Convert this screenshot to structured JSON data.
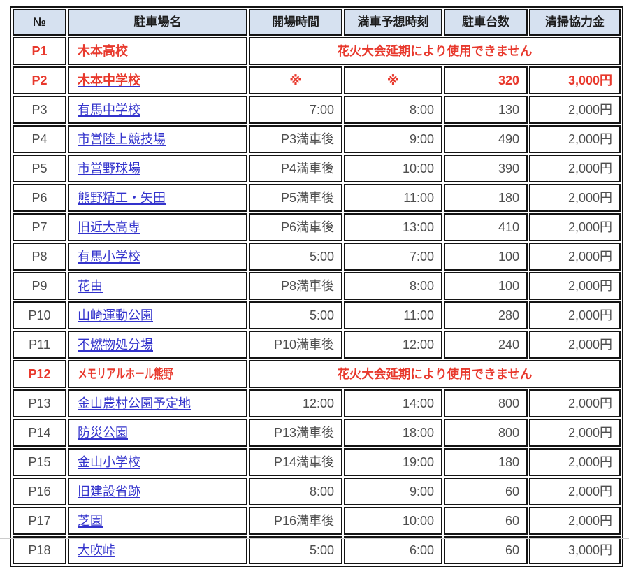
{
  "table": {
    "headers": [
      "№",
      "駐車場名",
      "開場時間",
      "満車予想時刻",
      "駐車台数",
      "清掃協力金"
    ],
    "unavailable_message": "花火大会延期により使用できません",
    "rows": [
      {
        "no": "P1",
        "name": "木本高校",
        "link": false,
        "red": true,
        "condensed": false,
        "closed": true
      },
      {
        "no": "P2",
        "name": "木本中学校",
        "link": true,
        "red": true,
        "condensed": false,
        "closed": false,
        "open": "※",
        "full": "※",
        "capacity": "320",
        "fee": "3,000円"
      },
      {
        "no": "P3",
        "name": "有馬中学校",
        "link": true,
        "red": false,
        "condensed": false,
        "closed": false,
        "open": "7:00",
        "full": "8:00",
        "capacity": "130",
        "fee": "2,000円"
      },
      {
        "no": "P4",
        "name": "市営陸上競技場",
        "link": true,
        "red": false,
        "condensed": false,
        "closed": false,
        "open": "P3満車後",
        "full": "9:00",
        "capacity": "490",
        "fee": "2,000円"
      },
      {
        "no": "P5",
        "name": "市営野球場",
        "link": true,
        "red": false,
        "condensed": false,
        "closed": false,
        "open": "P4満車後",
        "full": "10:00",
        "capacity": "390",
        "fee": "2,000円"
      },
      {
        "no": "P6",
        "name": "熊野精工・矢田",
        "link": true,
        "red": false,
        "condensed": false,
        "closed": false,
        "open": "P5満車後",
        "full": "11:00",
        "capacity": "180",
        "fee": "2,000円"
      },
      {
        "no": "P7",
        "name": "旧近大高専",
        "link": true,
        "red": false,
        "condensed": false,
        "closed": false,
        "open": "P6満車後",
        "full": "13:00",
        "capacity": "410",
        "fee": "2,000円"
      },
      {
        "no": "P8",
        "name": "有馬小学校",
        "link": true,
        "red": false,
        "condensed": false,
        "closed": false,
        "open": "5:00",
        "full": "7:00",
        "capacity": "100",
        "fee": "2,000円"
      },
      {
        "no": "P9",
        "name": "花由",
        "link": true,
        "red": false,
        "condensed": false,
        "closed": false,
        "open": "P8満車後",
        "full": "8:00",
        "capacity": "100",
        "fee": "2,000円"
      },
      {
        "no": "P10",
        "name": "山崎運動公園",
        "link": true,
        "red": false,
        "condensed": false,
        "closed": false,
        "open": "5:00",
        "full": "11:00",
        "capacity": "280",
        "fee": "2,000円"
      },
      {
        "no": "P11",
        "name": "不燃物処分場",
        "link": true,
        "red": false,
        "condensed": false,
        "closed": false,
        "open": "P10満車後",
        "full": "12:00",
        "capacity": "240",
        "fee": "2,000円"
      },
      {
        "no": "P12",
        "name": "メモリアルホール熊野",
        "link": false,
        "red": true,
        "condensed": true,
        "closed": true
      },
      {
        "no": "P13",
        "name": "金山農村公園予定地",
        "link": true,
        "red": false,
        "condensed": false,
        "closed": false,
        "open": "12:00",
        "full": "14:00",
        "capacity": "800",
        "fee": "2,000円"
      },
      {
        "no": "P14",
        "name": "防災公園",
        "link": true,
        "red": false,
        "condensed": false,
        "closed": false,
        "open": "P13満車後",
        "full": "18:00",
        "capacity": "800",
        "fee": "2,000円"
      },
      {
        "no": "P15",
        "name": "金山小学校",
        "link": true,
        "red": false,
        "condensed": false,
        "closed": false,
        "open": "P14満車後",
        "full": "19:00",
        "capacity": "180",
        "fee": "2,000円"
      },
      {
        "no": "P16",
        "name": "旧建設省跡",
        "link": true,
        "red": false,
        "condensed": false,
        "closed": false,
        "open": "8:00",
        "full": "9:00",
        "capacity": "60",
        "fee": "2,000円"
      },
      {
        "no": "P17",
        "name": "芝園",
        "link": true,
        "red": false,
        "condensed": false,
        "closed": false,
        "open": "P16満車後",
        "full": "10:00",
        "capacity": "60",
        "fee": "2,000円"
      },
      {
        "no": "P18",
        "name": "大吹峠",
        "link": true,
        "red": false,
        "condensed": false,
        "closed": false,
        "open": "5:00",
        "full": "6:00",
        "capacity": "60",
        "fee": "3,000円"
      }
    ]
  },
  "colors": {
    "accent_red": "#e8392d",
    "link_blue": "#3333cc",
    "header_bg": "#d6e1f0",
    "border": "#141414",
    "body_text": "#4e4e4e"
  }
}
